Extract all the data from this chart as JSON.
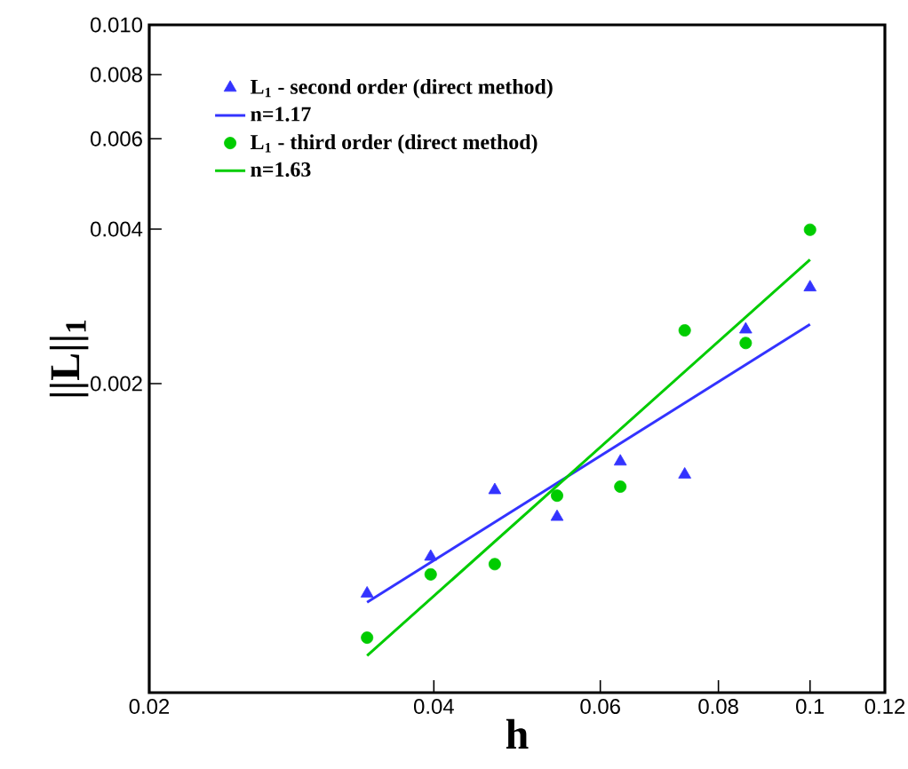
{
  "chart_data": {
    "type": "scatter",
    "xlabel": "h",
    "ylabel": "||L||$_{1}$",
    "log": "xy",
    "xlim": [
      0.02,
      0.12
    ],
    "ylim": [
      0.0005,
      0.01
    ],
    "xticks": [
      0.02,
      0.04,
      0.06,
      0.08,
      0.1,
      0.12
    ],
    "yticks": [
      0.002,
      0.004,
      0.006,
      0.008,
      {
        "value": 0.01,
        "label": "0.010"
      }
    ],
    "grid": false,
    "legend": "top left",
    "series": [
      {
        "name": "L$_{1}$ - second order (direct method)",
        "marker": "triangle",
        "color": "#3333ff",
        "x": [
          0.034,
          0.0397,
          0.0464,
          0.054,
          0.063,
          0.0737,
          0.0855,
          0.1
        ],
        "values": [
          0.00078,
          0.00092,
          0.00124,
          0.0011,
          0.00141,
          0.00133,
          0.00255,
          0.00308
        ]
      },
      {
        "name": "n=1.17",
        "type": "line",
        "marker": "none",
        "line_style": "solid",
        "color": "#3333ff",
        "x": [
          0.034,
          0.1
        ],
        "values": [
          0.00075,
          0.00261
        ]
      },
      {
        "name": "L$_{1}$ - third order (direct method)",
        "marker": "circle",
        "color": "#00cc00",
        "x": [
          0.034,
          0.0397,
          0.0464,
          0.054,
          0.063,
          0.0737,
          0.0855,
          0.1
        ],
        "values": [
          0.00064,
          0.00085,
          0.00089,
          0.00121,
          0.00126,
          0.00254,
          0.0024,
          0.00399
        ]
      },
      {
        "name": "n=1.63",
        "type": "line",
        "marker": "none",
        "line_style": "solid",
        "color": "#00cc00",
        "x": [
          0.034,
          0.1
        ],
        "values": [
          0.00059,
          0.00349
        ]
      }
    ]
  }
}
